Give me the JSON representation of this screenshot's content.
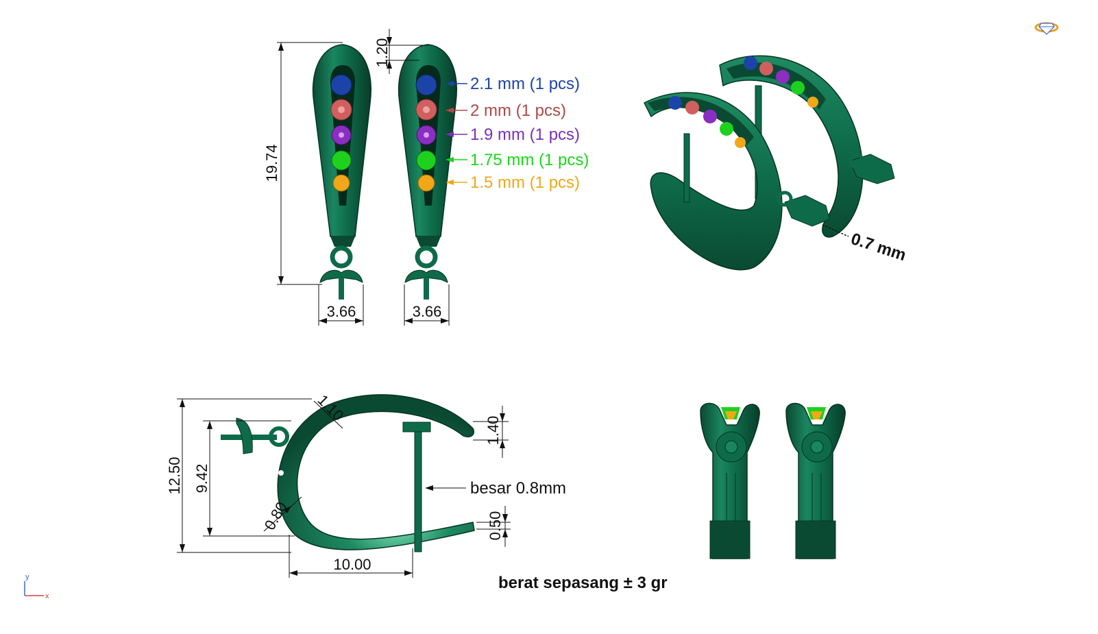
{
  "colors": {
    "metal": "#0e6b4a",
    "metal_dark": "#0a4a33",
    "metal_light": "#2f9a72",
    "stone_1": "#1c44a8",
    "stone_2": "#d06060",
    "stone_3": "#8a2fc0",
    "stone_4": "#1fd11f",
    "stone_5": "#f0a818"
  },
  "front_view": {
    "height_dim": "19.74",
    "top_gap_dim": "1.20",
    "width_dim_left": "3.66",
    "width_dim_right": "3.66"
  },
  "stones": [
    {
      "label": "2.1 mm (1 pcs)",
      "color": "#1c44a8"
    },
    {
      "label": "2 mm (1 pcs)",
      "color": "#b04848"
    },
    {
      "label": "1.9 mm (1 pcs)",
      "color": "#7a2fb8"
    },
    {
      "label": "1.75 mm (1 pcs)",
      "color": "#19d619"
    },
    {
      "label": "1.5 mm (1 pcs)",
      "color": "#f0a818"
    }
  ],
  "perspective_view": {
    "wire_dim": "0.7 mm"
  },
  "side_view": {
    "height_dim": "12.50",
    "inner_height_dim": "9.42",
    "top_thickness_dim": "1.10",
    "tip_thickness_dim": "1.40",
    "bottom_thickness_dim": "0.80",
    "lower_tip_dim": "0.50",
    "width_dim": "10.00",
    "post_label": "besar 0.8mm"
  },
  "weight_note": "berat sepasang ± 3 gr",
  "axis": {
    "y": "y",
    "x": "x"
  }
}
